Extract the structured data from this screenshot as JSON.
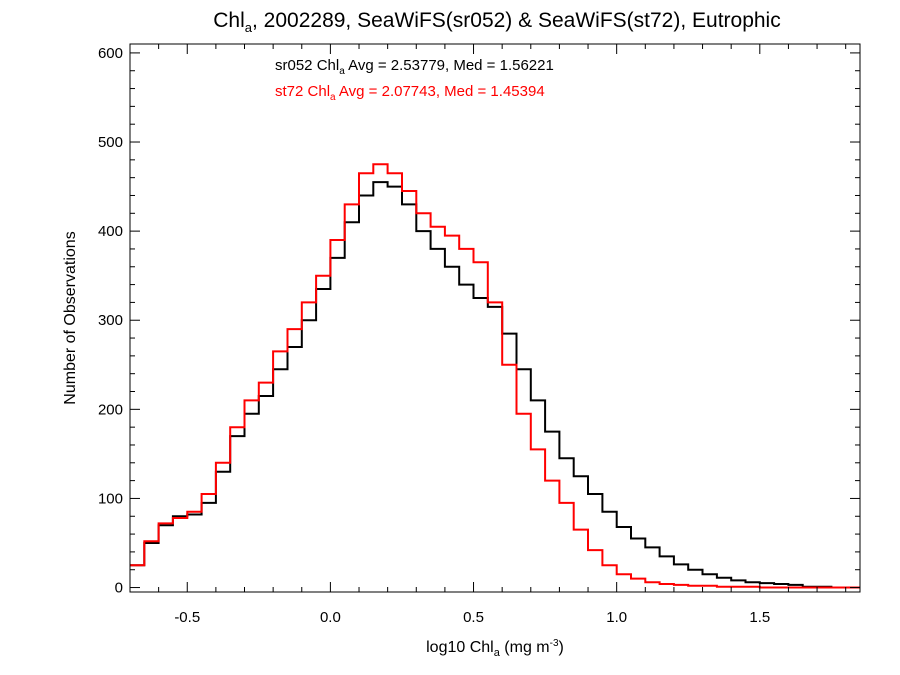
{
  "chart_data": {
    "type": "histogram-step",
    "title": {
      "prefix": "Chl",
      "prefix_sub": "a",
      "rest": ", 2002289, SeaWiFS(sr052) & SeaWiFS(st72), Eutrophic"
    },
    "xlabel": {
      "pre": "log10 Chl",
      "sub": "a",
      "mid": " (mg m",
      "sup": "-3",
      "post": ")"
    },
    "ylabel": "Number of Observations",
    "xlim": [
      -0.7,
      1.85
    ],
    "ylim": [
      -5,
      610
    ],
    "x_ticks": [
      -0.5,
      0.0,
      0.5,
      1.0,
      1.5
    ],
    "x_tick_labels": [
      "-0.5",
      "0.0",
      "0.5",
      "1.0",
      "1.5"
    ],
    "y_ticks": [
      0,
      100,
      200,
      300,
      400,
      500,
      600
    ],
    "y_tick_labels": [
      "0",
      "100",
      "200",
      "300",
      "400",
      "500",
      "600"
    ],
    "grid": false,
    "series": [
      {
        "name": "sr052",
        "color": "#000000",
        "annotation": {
          "pre": "sr052 Chl",
          "sub": "a",
          "post": " Avg = 2.53779, Med = 1.56221"
        },
        "points": [
          [
            -0.7,
            25
          ],
          [
            -0.65,
            50
          ],
          [
            -0.6,
            70
          ],
          [
            -0.55,
            80
          ],
          [
            -0.5,
            82
          ],
          [
            -0.45,
            95
          ],
          [
            -0.4,
            130
          ],
          [
            -0.35,
            170
          ],
          [
            -0.3,
            195
          ],
          [
            -0.25,
            215
          ],
          [
            -0.2,
            245
          ],
          [
            -0.15,
            270
          ],
          [
            -0.1,
            300
          ],
          [
            -0.05,
            335
          ],
          [
            0.0,
            370
          ],
          [
            0.05,
            410
          ],
          [
            0.1,
            440
          ],
          [
            0.15,
            455
          ],
          [
            0.2,
            450
          ],
          [
            0.25,
            430
          ],
          [
            0.3,
            400
          ],
          [
            0.35,
            380
          ],
          [
            0.4,
            360
          ],
          [
            0.45,
            340
          ],
          [
            0.5,
            325
          ],
          [
            0.55,
            315
          ],
          [
            0.6,
            285
          ],
          [
            0.65,
            245
          ],
          [
            0.7,
            210
          ],
          [
            0.75,
            175
          ],
          [
            0.8,
            145
          ],
          [
            0.85,
            125
          ],
          [
            0.9,
            105
          ],
          [
            0.95,
            85
          ],
          [
            1.0,
            68
          ],
          [
            1.05,
            55
          ],
          [
            1.1,
            45
          ],
          [
            1.15,
            35
          ],
          [
            1.2,
            26
          ],
          [
            1.25,
            20
          ],
          [
            1.3,
            15
          ],
          [
            1.35,
            11
          ],
          [
            1.4,
            8
          ],
          [
            1.45,
            6
          ],
          [
            1.5,
            5
          ],
          [
            1.55,
            4
          ],
          [
            1.6,
            3
          ],
          [
            1.65,
            1
          ],
          [
            1.7,
            1
          ],
          [
            1.75,
            0
          ],
          [
            1.8,
            0
          ]
        ]
      },
      {
        "name": "st72",
        "color": "#ff0000",
        "annotation": {
          "pre": "st72 Chl",
          "sub": "a",
          "post": " Avg = 2.07743, Med = 1.45394"
        },
        "points": [
          [
            -0.7,
            25
          ],
          [
            -0.65,
            52
          ],
          [
            -0.6,
            72
          ],
          [
            -0.55,
            78
          ],
          [
            -0.5,
            85
          ],
          [
            -0.45,
            105
          ],
          [
            -0.4,
            140
          ],
          [
            -0.35,
            180
          ],
          [
            -0.3,
            210
          ],
          [
            -0.25,
            230
          ],
          [
            -0.2,
            265
          ],
          [
            -0.15,
            290
          ],
          [
            -0.1,
            320
          ],
          [
            -0.05,
            350
          ],
          [
            0.0,
            390
          ],
          [
            0.05,
            430
          ],
          [
            0.1,
            465
          ],
          [
            0.15,
            475
          ],
          [
            0.2,
            465
          ],
          [
            0.25,
            445
          ],
          [
            0.3,
            420
          ],
          [
            0.35,
            405
          ],
          [
            0.4,
            395
          ],
          [
            0.45,
            380
          ],
          [
            0.5,
            365
          ],
          [
            0.55,
            320
          ],
          [
            0.6,
            250
          ],
          [
            0.65,
            195
          ],
          [
            0.7,
            155
          ],
          [
            0.75,
            120
          ],
          [
            0.8,
            95
          ],
          [
            0.85,
            65
          ],
          [
            0.9,
            42
          ],
          [
            0.95,
            25
          ],
          [
            1.0,
            15
          ],
          [
            1.05,
            10
          ],
          [
            1.1,
            6
          ],
          [
            1.15,
            4
          ],
          [
            1.2,
            3
          ],
          [
            1.25,
            2
          ],
          [
            1.3,
            2
          ],
          [
            1.35,
            1
          ],
          [
            1.4,
            1
          ],
          [
            1.45,
            1
          ],
          [
            1.5,
            0
          ],
          [
            1.55,
            0
          ],
          [
            1.6,
            0
          ],
          [
            1.65,
            0
          ],
          [
            1.7,
            0
          ],
          [
            1.75,
            0
          ],
          [
            1.8,
            0
          ]
        ]
      }
    ]
  }
}
